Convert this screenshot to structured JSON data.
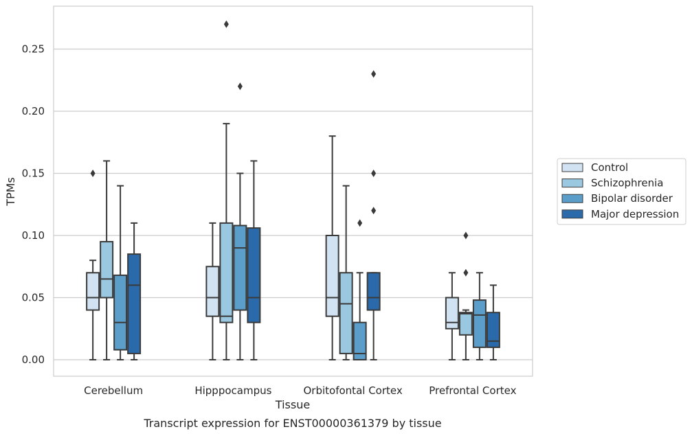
{
  "chart_data": {
    "type": "box",
    "caption": "Transcript expression for ENST00000361379 by tissue",
    "xlabel": "Tissue",
    "ylabel": "TPMs",
    "ylim": [
      -0.013,
      0.285
    ],
    "yticks": [
      "0.00",
      "0.05",
      "0.10",
      "0.15",
      "0.20",
      "0.25"
    ],
    "grid": true,
    "legend_position": "right",
    "categories": [
      "Cerebellum",
      "Hipppocampus",
      "Orbitofontal Cortex",
      "Prefrontal Cortex"
    ],
    "series": [
      {
        "name": "Control",
        "color": "#d1e2f2",
        "boxes": [
          {
            "whislo": 0.0,
            "q1": 0.04,
            "median": 0.05,
            "q3": 0.07,
            "whishi": 0.08,
            "fliers": [
              0.15
            ]
          },
          {
            "whislo": 0.0,
            "q1": 0.035,
            "median": 0.05,
            "q3": 0.075,
            "whishi": 0.11,
            "fliers": []
          },
          {
            "whislo": 0.0,
            "q1": 0.035,
            "median": 0.05,
            "q3": 0.1,
            "whishi": 0.18,
            "fliers": []
          },
          {
            "whislo": 0.0,
            "q1": 0.025,
            "median": 0.03,
            "q3": 0.05,
            "whishi": 0.07,
            "fliers": []
          }
        ]
      },
      {
        "name": "Schizophrenia",
        "color": "#9ac8e0",
        "boxes": [
          {
            "whislo": 0.0,
            "q1": 0.05,
            "median": 0.065,
            "q3": 0.095,
            "whishi": 0.16,
            "fliers": []
          },
          {
            "whislo": 0.0,
            "q1": 0.03,
            "median": 0.035,
            "q3": 0.11,
            "whishi": 0.19,
            "fliers": [
              0.27
            ]
          },
          {
            "whislo": 0.0,
            "q1": 0.005,
            "median": 0.045,
            "q3": 0.07,
            "whishi": 0.14,
            "fliers": []
          },
          {
            "whislo": 0.0,
            "q1": 0.02,
            "median": 0.037,
            "q3": 0.038,
            "whishi": 0.04,
            "fliers": [
              0.07,
              0.1
            ]
          }
        ]
      },
      {
        "name": "Bipolar disorder",
        "color": "#5a9ec9",
        "boxes": [
          {
            "whislo": 0.0,
            "q1": 0.008,
            "median": 0.03,
            "q3": 0.068,
            "whishi": 0.14,
            "fliers": []
          },
          {
            "whislo": 0.0,
            "q1": 0.04,
            "median": 0.09,
            "q3": 0.108,
            "whishi": 0.15,
            "fliers": [
              0.22
            ]
          },
          {
            "whislo": 0.0,
            "q1": 0.0,
            "median": 0.005,
            "q3": 0.03,
            "whishi": 0.07,
            "fliers": [
              0.11
            ]
          },
          {
            "whislo": 0.0,
            "q1": 0.01,
            "median": 0.036,
            "q3": 0.048,
            "whishi": 0.07,
            "fliers": []
          }
        ]
      },
      {
        "name": "Major depression",
        "color": "#2a6aab",
        "boxes": [
          {
            "whislo": 0.0,
            "q1": 0.005,
            "median": 0.06,
            "q3": 0.085,
            "whishi": 0.11,
            "fliers": []
          },
          {
            "whislo": 0.0,
            "q1": 0.03,
            "median": 0.05,
            "q3": 0.106,
            "whishi": 0.16,
            "fliers": []
          },
          {
            "whislo": 0.0,
            "q1": 0.04,
            "median": 0.05,
            "q3": 0.07,
            "whishi": 0.07,
            "fliers": [
              0.12,
              0.15,
              0.23
            ]
          },
          {
            "whislo": 0.0,
            "q1": 0.01,
            "median": 0.015,
            "q3": 0.038,
            "whishi": 0.06,
            "fliers": []
          }
        ]
      }
    ]
  }
}
